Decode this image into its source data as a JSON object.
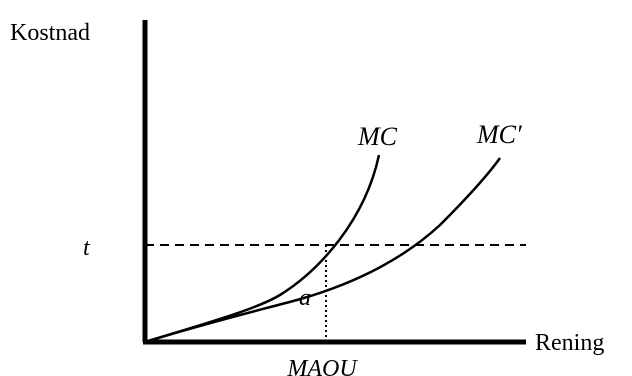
{
  "diagram": {
    "y_axis_label": "Kostnad",
    "x_axis_label": "Rening",
    "curves": [
      {
        "label": "MC",
        "style": "solid"
      },
      {
        "label": "MC′",
        "style": "solid"
      }
    ],
    "horizontal_line": {
      "label": "t",
      "style": "dashed"
    },
    "vertical_marker": {
      "label": "MAOU",
      "style": "dotted"
    },
    "area_label": "a"
  }
}
